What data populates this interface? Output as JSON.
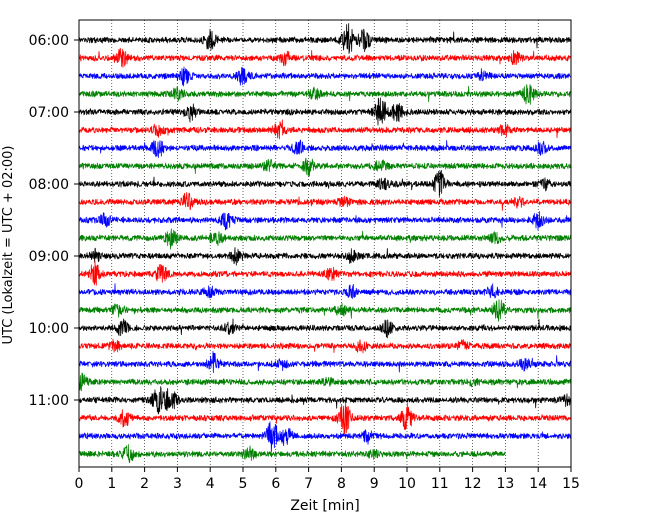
{
  "chart_data": {
    "type": "line",
    "title": "",
    "xlabel": "Zeit  [min]",
    "ylabel": "UTC (Lokalzeit = UTC + 02:00)",
    "xlim": [
      0,
      15
    ],
    "x_ticks": [
      "0",
      "1",
      "2",
      "3",
      "4",
      "5",
      "6",
      "7",
      "8",
      "9",
      "10",
      "11",
      "12",
      "13",
      "14",
      "15"
    ],
    "y_ticks": [
      "06:00",
      "07:00",
      "08:00",
      "09:00",
      "10:00",
      "11:00"
    ],
    "grid": "vertical dotted at each minute",
    "trace_colors": [
      "#000000",
      "#ff0000",
      "#0000ff",
      "#008000"
    ],
    "traces": [
      {
        "start": "06:00",
        "color": "#000000",
        "end_min": 15,
        "events": [
          [
            4.0,
            1.0
          ],
          [
            8.2,
            1.6
          ],
          [
            8.7,
            1.1
          ]
        ]
      },
      {
        "start": "06:15",
        "color": "#ff0000",
        "end_min": 15,
        "events": [
          [
            1.3,
            0.9
          ],
          [
            6.3,
            0.6
          ],
          [
            13.3,
            0.6
          ]
        ]
      },
      {
        "start": "06:30",
        "color": "#0000ff",
        "end_min": 15,
        "events": [
          [
            3.2,
            0.9
          ],
          [
            5.0,
            0.9
          ],
          [
            12.3,
            0.5
          ]
        ]
      },
      {
        "start": "06:45",
        "color": "#008000",
        "end_min": 15,
        "events": [
          [
            3.0,
            0.6
          ],
          [
            7.2,
            0.5
          ],
          [
            13.7,
            1.0
          ]
        ]
      },
      {
        "start": "07:00",
        "color": "#000000",
        "end_min": 15,
        "events": [
          [
            3.4,
            0.8
          ],
          [
            9.2,
            1.6
          ],
          [
            9.7,
            1.0
          ]
        ]
      },
      {
        "start": "07:15",
        "color": "#ff0000",
        "end_min": 15,
        "events": [
          [
            2.4,
            0.6
          ],
          [
            6.1,
            0.7
          ],
          [
            13.0,
            0.6
          ]
        ]
      },
      {
        "start": "07:30",
        "color": "#0000ff",
        "end_min": 15,
        "events": [
          [
            2.4,
            0.9
          ],
          [
            6.7,
            0.7
          ],
          [
            14.1,
            0.6
          ]
        ]
      },
      {
        "start": "07:45",
        "color": "#008000",
        "end_min": 15,
        "events": [
          [
            5.8,
            0.5
          ],
          [
            7.0,
            0.8
          ],
          [
            9.2,
            0.5
          ]
        ]
      },
      {
        "start": "08:00",
        "color": "#000000",
        "end_min": 15,
        "events": [
          [
            9.3,
            0.5
          ],
          [
            11.0,
            1.4
          ],
          [
            14.2,
            0.5
          ]
        ]
      },
      {
        "start": "08:15",
        "color": "#ff0000",
        "end_min": 15,
        "events": [
          [
            3.3,
            0.9
          ],
          [
            8.1,
            0.4
          ],
          [
            13.4,
            0.4
          ]
        ]
      },
      {
        "start": "08:30",
        "color": "#0000ff",
        "end_min": 15,
        "events": [
          [
            0.8,
            0.6
          ],
          [
            4.5,
            0.8
          ],
          [
            14.0,
            0.8
          ]
        ]
      },
      {
        "start": "08:45",
        "color": "#008000",
        "end_min": 15,
        "events": [
          [
            2.8,
            1.0
          ],
          [
            4.2,
            0.8
          ],
          [
            12.7,
            0.5
          ]
        ]
      },
      {
        "start": "09:00",
        "color": "#000000",
        "end_min": 15,
        "events": [
          [
            0.5,
            0.6
          ],
          [
            4.8,
            0.7
          ],
          [
            8.3,
            0.6
          ]
        ]
      },
      {
        "start": "09:15",
        "color": "#ff0000",
        "end_min": 15,
        "events": [
          [
            0.5,
            1.2
          ],
          [
            2.5,
            0.8
          ],
          [
            7.7,
            0.5
          ]
        ]
      },
      {
        "start": "09:30",
        "color": "#0000ff",
        "end_min": 15,
        "events": [
          [
            4.0,
            0.5
          ],
          [
            8.3,
            0.6
          ],
          [
            12.6,
            0.6
          ]
        ]
      },
      {
        "start": "09:45",
        "color": "#008000",
        "end_min": 15,
        "events": [
          [
            1.2,
            0.6
          ],
          [
            8.0,
            0.5
          ],
          [
            12.8,
            1.0
          ]
        ]
      },
      {
        "start": "10:00",
        "color": "#000000",
        "end_min": 15,
        "events": [
          [
            1.3,
            0.9
          ],
          [
            4.6,
            0.5
          ],
          [
            9.4,
            0.8
          ]
        ]
      },
      {
        "start": "10:15",
        "color": "#ff0000",
        "end_min": 15,
        "events": [
          [
            1.1,
            0.6
          ],
          [
            8.6,
            0.6
          ],
          [
            11.7,
            0.5
          ]
        ]
      },
      {
        "start": "10:30",
        "color": "#0000ff",
        "end_min": 15,
        "events": [
          [
            4.1,
            1.1
          ],
          [
            6.2,
            0.5
          ],
          [
            13.6,
            0.5
          ]
        ]
      },
      {
        "start": "10:45",
        "color": "#008000",
        "end_min": 15,
        "events": [
          [
            0.1,
            0.8
          ],
          [
            7.6,
            0.3
          ],
          [
            12.0,
            0.3
          ]
        ]
      },
      {
        "start": "11:00",
        "color": "#000000",
        "end_min": 15,
        "events": [
          [
            2.4,
            1.5
          ],
          [
            2.8,
            1.3
          ],
          [
            14.9,
            0.5
          ]
        ]
      },
      {
        "start": "11:15",
        "color": "#ff0000",
        "end_min": 15,
        "events": [
          [
            1.4,
            0.8
          ],
          [
            8.1,
            1.5
          ],
          [
            10.0,
            1.3
          ]
        ]
      },
      {
        "start": "11:30",
        "color": "#0000ff",
        "end_min": 15,
        "events": [
          [
            5.9,
            1.7
          ],
          [
            6.3,
            1.0
          ],
          [
            8.8,
            0.6
          ]
        ]
      },
      {
        "start": "11:45",
        "color": "#008000",
        "end_min": 13.0,
        "events": [
          [
            1.5,
            0.9
          ],
          [
            5.2,
            0.7
          ],
          [
            9.0,
            0.4
          ]
        ]
      }
    ]
  }
}
